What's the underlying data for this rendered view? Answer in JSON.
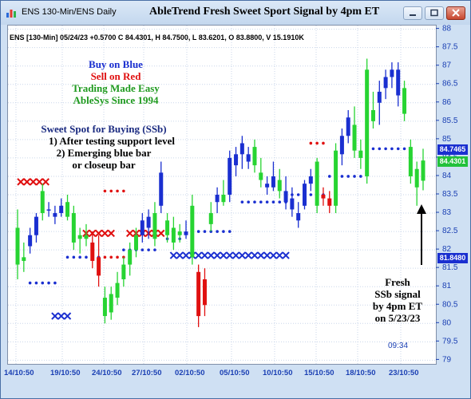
{
  "window": {
    "title_left": "ENS 130-Min/ENS Daily",
    "title_main": "AbleTrend Fresh Sweet Sport Signal by 4pm ET"
  },
  "info_line": "ENS [130-Min] 05/24/23 +0.5700 C 84.4301, H 84.7500, L 83.6201, O 83.8800, V 15.1910K",
  "legend": {
    "buy": "Buy on Blue",
    "sell": "Sell on Red",
    "tagline1": "Trading Made Easy",
    "tagline2": "AbleSys Since 1994"
  },
  "sweet_spot": {
    "title": "Sweet Spot for Buying (SSb)",
    "line1": "1) After testing support level",
    "line2": "2) Emerging blue bar",
    "line3": "or closeup bar"
  },
  "callout": {
    "line1": "Fresh",
    "line2": "SSb signal",
    "line3": "by 4pm ET",
    "line4": "on 5/23/23"
  },
  "time_readout": "09:34",
  "price_badges": [
    {
      "text": "84.7465",
      "color": "#1a2fd0"
    },
    {
      "text": "84.4301",
      "color": "#22c13b"
    },
    {
      "text": "81.8480",
      "color": "#1a2fd0"
    }
  ],
  "colors": {
    "blue_bar": "#1a2fd0",
    "red_bar": "#e01010",
    "green_bar": "#27d432",
    "buy_text": "#1a2fd0",
    "sell_text": "#e01010",
    "tag_text": "#1f9a1f",
    "axis_text": "#1a3fb3"
  },
  "chart_data": {
    "type": "candlestick",
    "title": "AbleTrend Fresh Sweet Sport Signal by 4pm ET",
    "x_ticks": [
      "14/10:50",
      "19/10:50",
      "24/10:50",
      "27/10:50",
      "02/10:50",
      "05/10:50",
      "10/10:50",
      "15/10:50",
      "18/10:50",
      "23/10:50"
    ],
    "y_ticks": [
      79,
      79.5,
      80,
      80.5,
      81,
      81.5,
      82,
      82.5,
      83,
      83.5,
      84,
      84.5,
      85,
      85.5,
      86,
      86.5,
      87,
      87.5,
      88
    ],
    "ylim": [
      78.9,
      88.1
    ],
    "grid": true,
    "bars": [
      {
        "o": 82.6,
        "h": 83.1,
        "l": 81.2,
        "c": 81.6,
        "col": "green"
      },
      {
        "o": 81.7,
        "h": 82.2,
        "l": 81.4,
        "c": 81.8,
        "col": "green"
      },
      {
        "o": 82.1,
        "h": 82.6,
        "l": 81.9,
        "c": 82.4,
        "col": "blue"
      },
      {
        "o": 82.4,
        "h": 83.0,
        "l": 82.2,
        "c": 82.9,
        "col": "blue"
      },
      {
        "o": 83.6,
        "h": 83.8,
        "l": 82.8,
        "c": 83.0,
        "col": "green"
      },
      {
        "o": 83.1,
        "h": 83.3,
        "l": 82.9,
        "c": 83.1,
        "col": "blue"
      },
      {
        "o": 82.9,
        "h": 83.2,
        "l": 82.7,
        "c": 83.0,
        "col": "blue"
      },
      {
        "o": 83.2,
        "h": 83.4,
        "l": 82.9,
        "c": 83.0,
        "col": "blue"
      },
      {
        "o": 83.3,
        "h": 83.5,
        "l": 82.8,
        "c": 82.9,
        "col": "green"
      },
      {
        "o": 83.0,
        "h": 83.2,
        "l": 82.0,
        "c": 82.2,
        "col": "green"
      },
      {
        "o": 82.3,
        "h": 82.6,
        "l": 81.9,
        "c": 82.4,
        "col": "green"
      },
      {
        "o": 82.4,
        "h": 82.7,
        "l": 82.1,
        "c": 82.3,
        "col": "green"
      },
      {
        "o": 82.2,
        "h": 82.5,
        "l": 81.5,
        "c": 81.7,
        "col": "red"
      },
      {
        "o": 81.8,
        "h": 82.4,
        "l": 81.0,
        "c": 81.3,
        "col": "red"
      },
      {
        "o": 80.7,
        "h": 81.0,
        "l": 80.0,
        "c": 80.2,
        "col": "green"
      },
      {
        "o": 80.3,
        "h": 81.0,
        "l": 80.1,
        "c": 80.8,
        "col": "green"
      },
      {
        "o": 80.7,
        "h": 81.4,
        "l": 80.5,
        "c": 81.1,
        "col": "green"
      },
      {
        "o": 81.2,
        "h": 81.8,
        "l": 81.0,
        "c": 81.6,
        "col": "green"
      },
      {
        "o": 81.6,
        "h": 82.2,
        "l": 81.3,
        "c": 82.0,
        "col": "green"
      },
      {
        "o": 82.0,
        "h": 82.6,
        "l": 81.8,
        "c": 82.4,
        "col": "green"
      },
      {
        "o": 82.4,
        "h": 83.0,
        "l": 82.2,
        "c": 82.8,
        "col": "blue"
      },
      {
        "o": 82.6,
        "h": 83.1,
        "l": 82.3,
        "c": 82.9,
        "col": "blue"
      },
      {
        "o": 83.0,
        "h": 83.3,
        "l": 82.1,
        "c": 82.3,
        "col": "green"
      },
      {
        "o": 83.2,
        "h": 84.4,
        "l": 83.0,
        "c": 84.1,
        "col": "blue"
      },
      {
        "o": 82.8,
        "h": 83.0,
        "l": 82.2,
        "c": 82.4,
        "col": "green"
      },
      {
        "o": 82.6,
        "h": 82.9,
        "l": 82.0,
        "c": 82.2,
        "col": "green"
      },
      {
        "o": 82.4,
        "h": 82.7,
        "l": 82.2,
        "c": 82.5,
        "col": "green"
      },
      {
        "o": 82.5,
        "h": 82.8,
        "l": 82.3,
        "c": 82.4,
        "col": "blue"
      },
      {
        "o": 83.2,
        "h": 83.5,
        "l": 81.6,
        "c": 81.8,
        "col": "green"
      },
      {
        "o": 81.4,
        "h": 81.6,
        "l": 79.9,
        "c": 80.2,
        "col": "red"
      },
      {
        "o": 81.2,
        "h": 81.5,
        "l": 80.2,
        "c": 80.5,
        "col": "red"
      },
      {
        "o": 83.0,
        "h": 83.3,
        "l": 82.5,
        "c": 82.7,
        "col": "green"
      },
      {
        "o": 83.3,
        "h": 83.7,
        "l": 83.0,
        "c": 83.5,
        "col": "blue"
      },
      {
        "o": 83.5,
        "h": 83.9,
        "l": 83.2,
        "c": 83.3,
        "col": "green"
      },
      {
        "o": 83.5,
        "h": 84.7,
        "l": 83.3,
        "c": 84.5,
        "col": "blue"
      },
      {
        "o": 84.3,
        "h": 84.8,
        "l": 84.0,
        "c": 84.6,
        "col": "blue"
      },
      {
        "o": 84.6,
        "h": 85.1,
        "l": 84.2,
        "c": 84.9,
        "col": "blue"
      },
      {
        "o": 84.4,
        "h": 84.8,
        "l": 84.2,
        "c": 84.6,
        "col": "blue"
      },
      {
        "o": 84.8,
        "h": 85.0,
        "l": 84.1,
        "c": 84.3,
        "col": "green"
      },
      {
        "o": 84.1,
        "h": 84.5,
        "l": 83.7,
        "c": 83.9,
        "col": "green"
      },
      {
        "o": 83.7,
        "h": 84.0,
        "l": 83.5,
        "c": 83.8,
        "col": "blue"
      },
      {
        "o": 84.0,
        "h": 84.4,
        "l": 83.6,
        "c": 83.7,
        "col": "blue"
      },
      {
        "o": 83.9,
        "h": 84.2,
        "l": 83.4,
        "c": 83.6,
        "col": "green"
      },
      {
        "o": 83.6,
        "h": 84.0,
        "l": 83.1,
        "c": 83.3,
        "col": "blue"
      },
      {
        "o": 83.4,
        "h": 83.7,
        "l": 82.9,
        "c": 83.1,
        "col": "blue"
      },
      {
        "o": 83.0,
        "h": 83.3,
        "l": 82.6,
        "c": 82.8,
        "col": "blue"
      },
      {
        "o": 83.2,
        "h": 83.9,
        "l": 83.1,
        "c": 83.8,
        "col": "blue"
      },
      {
        "o": 83.8,
        "h": 84.2,
        "l": 83.6,
        "c": 84.0,
        "col": "blue"
      },
      {
        "o": 84.4,
        "h": 84.5,
        "l": 83.0,
        "c": 83.2,
        "col": "green"
      },
      {
        "o": 83.5,
        "h": 83.7,
        "l": 83.2,
        "c": 83.4,
        "col": "red"
      },
      {
        "o": 83.4,
        "h": 83.6,
        "l": 83.0,
        "c": 83.2,
        "col": "red"
      },
      {
        "o": 83.2,
        "h": 84.9,
        "l": 83.0,
        "c": 84.7,
        "col": "green"
      },
      {
        "o": 84.6,
        "h": 85.3,
        "l": 84.3,
        "c": 85.1,
        "col": "blue"
      },
      {
        "o": 85.1,
        "h": 85.8,
        "l": 84.9,
        "c": 85.6,
        "col": "blue"
      },
      {
        "o": 85.4,
        "h": 85.9,
        "l": 84.5,
        "c": 84.7,
        "col": "green"
      },
      {
        "o": 84.7,
        "h": 85.0,
        "l": 84.2,
        "c": 84.5,
        "col": "green"
      },
      {
        "o": 84.0,
        "h": 87.2,
        "l": 83.8,
        "c": 86.9,
        "col": "green"
      },
      {
        "o": 85.8,
        "h": 86.3,
        "l": 85.3,
        "c": 85.5,
        "col": "green"
      },
      {
        "o": 86.0,
        "h": 86.6,
        "l": 85.4,
        "c": 86.3,
        "col": "blue"
      },
      {
        "o": 86.4,
        "h": 86.9,
        "l": 86.1,
        "c": 86.7,
        "col": "blue"
      },
      {
        "o": 86.7,
        "h": 87.1,
        "l": 86.4,
        "c": 86.9,
        "col": "blue"
      },
      {
        "o": 86.2,
        "h": 87.1,
        "l": 85.9,
        "c": 86.9,
        "col": "blue"
      },
      {
        "o": 86.4,
        "h": 86.6,
        "l": 85.5,
        "c": 85.7,
        "col": "green"
      },
      {
        "o": 84.8,
        "h": 85.0,
        "l": 83.8,
        "c": 84.0,
        "col": "green"
      },
      {
        "o": 83.7,
        "h": 84.4,
        "l": 83.2,
        "c": 84.2,
        "col": "green"
      },
      {
        "o": 83.88,
        "h": 84.75,
        "l": 83.62,
        "c": 84.43,
        "col": "green"
      }
    ],
    "support_dots": [
      {
        "from": 2,
        "to": 6,
        "price": 81.1,
        "color": "blue"
      },
      {
        "from": 8,
        "to": 13,
        "price": 81.8,
        "color": "blue"
      },
      {
        "from": 14,
        "to": 17,
        "price": 81.8,
        "color": "red"
      },
      {
        "from": 17,
        "to": 22,
        "price": 82.0,
        "color": "blue"
      },
      {
        "from": 24,
        "to": 26,
        "price": 82.3,
        "color": "blue"
      },
      {
        "from": 29,
        "to": 34,
        "price": 82.5,
        "color": "blue"
      },
      {
        "from": 36,
        "to": 43,
        "price": 83.3,
        "color": "blue"
      },
      {
        "from": 44,
        "to": 49,
        "price": 83.5,
        "color": "blue"
      },
      {
        "from": 50,
        "to": 55,
        "price": 84.0,
        "color": "blue"
      },
      {
        "from": 57,
        "to": 62,
        "price": 84.75,
        "color": "blue"
      }
    ],
    "resistance_dots": [
      {
        "from": 14,
        "to": 17,
        "price": 83.6,
        "color": "red"
      },
      {
        "from": 47,
        "to": 49,
        "price": 84.9,
        "color": "red"
      }
    ],
    "x_markers": [
      {
        "from": 0,
        "to": 4,
        "price": 83.85,
        "color": "red"
      },
      {
        "from": 6,
        "to": 8,
        "price": 80.2,
        "color": "blue"
      },
      {
        "from": 11,
        "to": 15,
        "price": 82.45,
        "color": "red"
      },
      {
        "from": 18,
        "to": 23,
        "price": 82.45,
        "color": "red"
      },
      {
        "from": 25,
        "to": 43,
        "price": 81.85,
        "color": "blue"
      }
    ]
  }
}
